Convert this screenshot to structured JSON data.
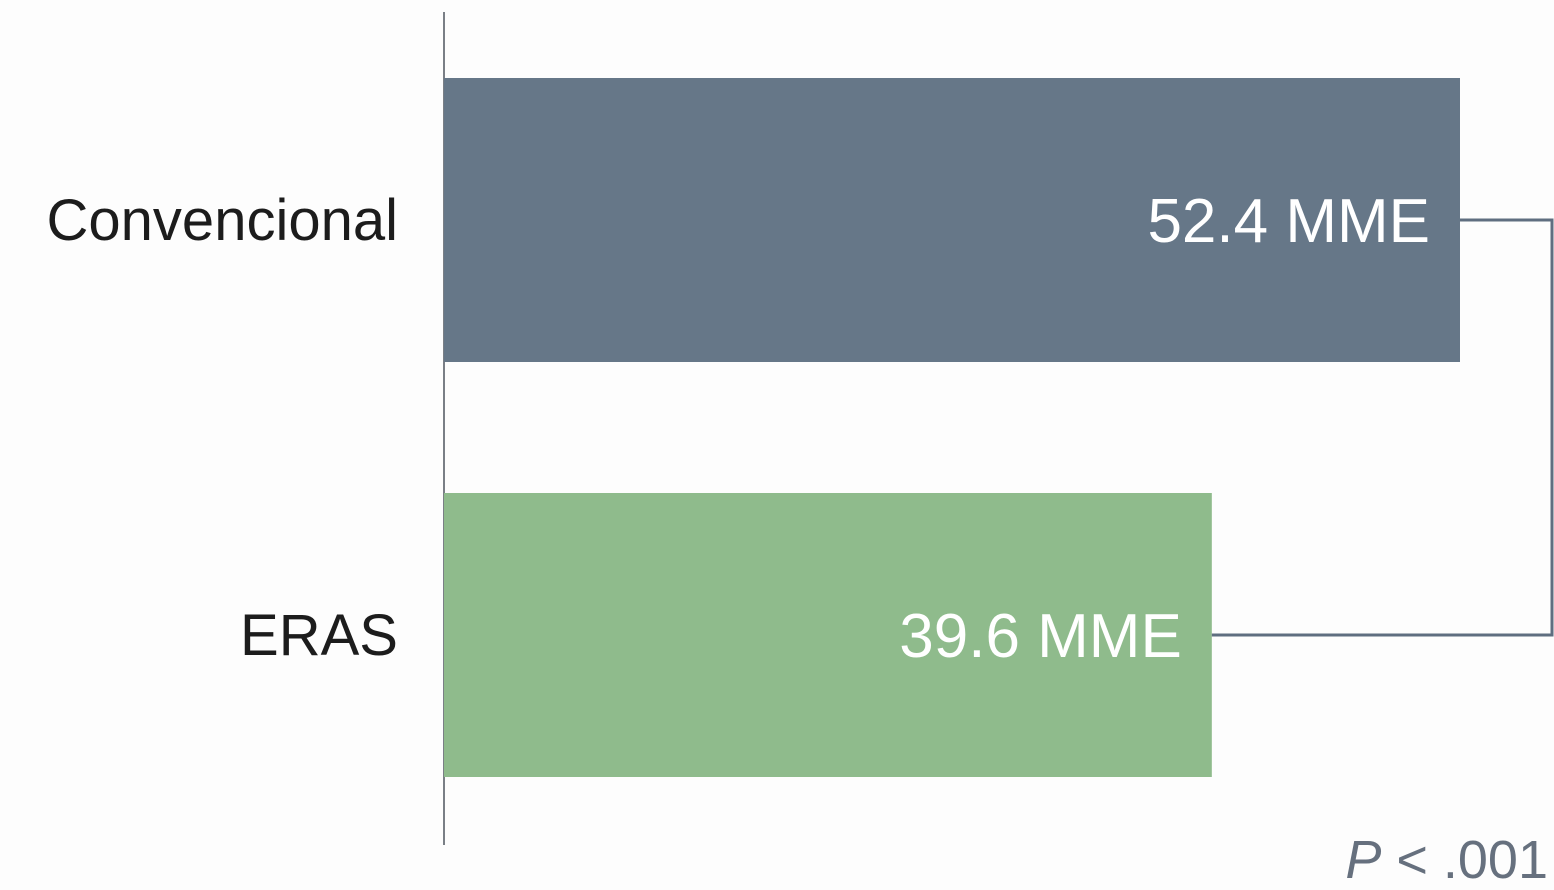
{
  "chart_data": {
    "type": "bar",
    "orientation": "horizontal",
    "categories": [
      "Convencional",
      "ERAS"
    ],
    "values": [
      52.4,
      39.6
    ],
    "value_labels": [
      "52.4 MME",
      "39.6 MME"
    ],
    "colors": [
      "#667788",
      "#8fbb8c"
    ],
    "bracket_color": "#5f6e80",
    "annotation": {
      "p_symbol": "P",
      "p_rest": " < .001"
    },
    "xlim": [
      0,
      52.4
    ],
    "grid": false,
    "axis_visible": false
  }
}
